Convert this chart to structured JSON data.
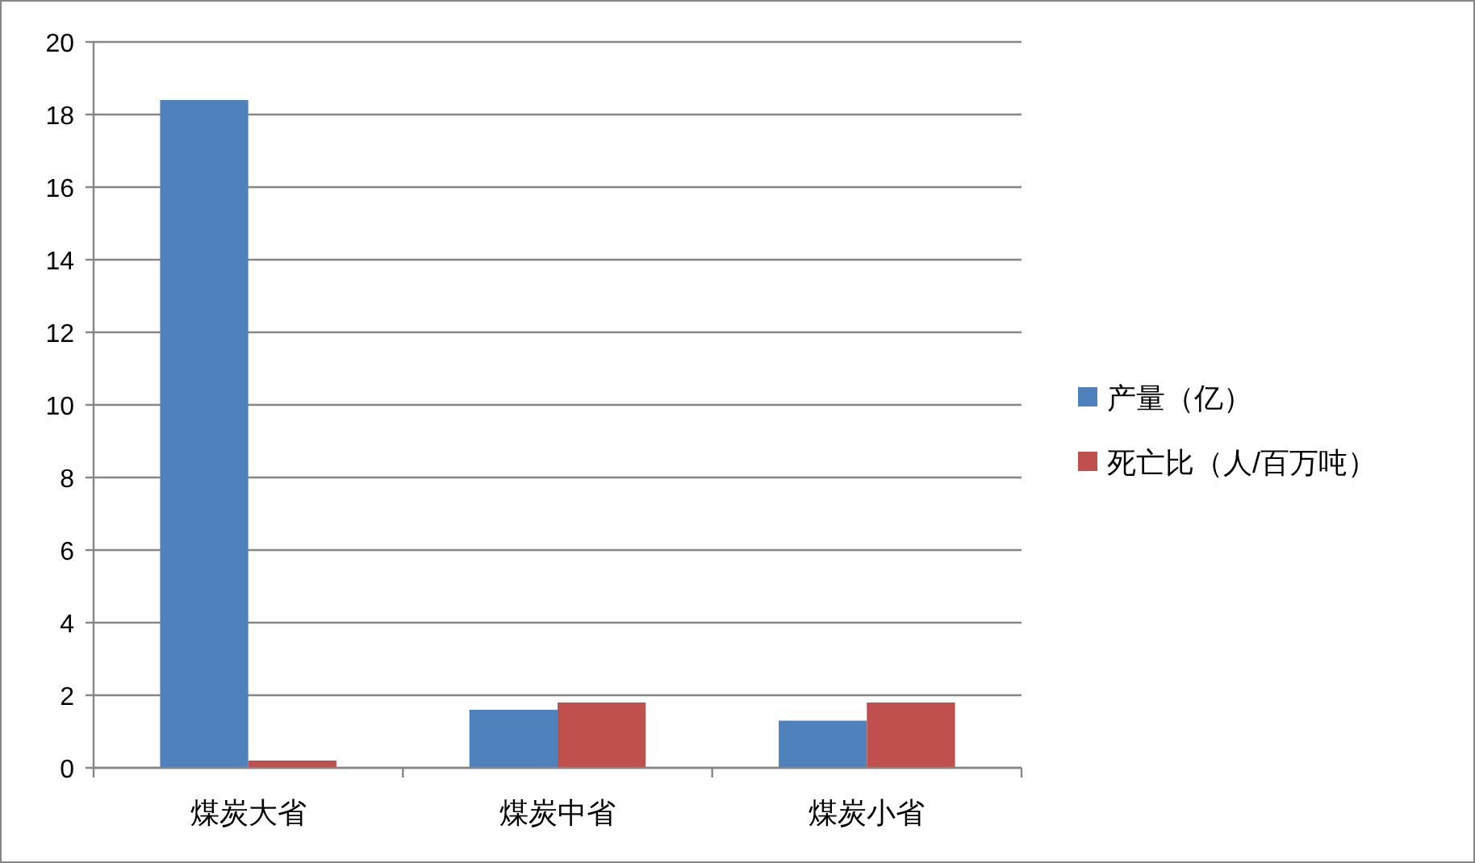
{
  "chart_data": {
    "type": "bar",
    "categories": [
      "煤炭大省",
      "煤炭中省",
      "煤炭小省"
    ],
    "series": [
      {
        "name": "产量（亿）",
        "color": "#4f81bd",
        "values": [
          18.4,
          1.6,
          1.3
        ]
      },
      {
        "name": "死亡比（人/百万吨）",
        "color": "#c0504d",
        "values": [
          0.2,
          1.8,
          1.8
        ]
      }
    ],
    "ylim": [
      0,
      20
    ],
    "yticks": [
      0,
      2,
      4,
      6,
      8,
      10,
      12,
      14,
      16,
      18,
      20
    ],
    "grid": "y",
    "legend": "right"
  }
}
